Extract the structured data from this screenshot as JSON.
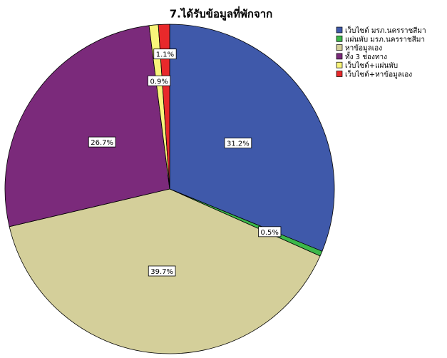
{
  "chart_data": {
    "type": "pie",
    "title": "7.ได้รับข้อมูลที่พักจาก",
    "categories": [
      "เว็บไซต์ มรภ.นครราชสีมา",
      "แผ่นพับ มรภ.นครราชสีมา",
      "หาข้อมูลเอง",
      "ทั้ง 3 ช่องทาง",
      "เว็บไซต์+แผ่นพับ",
      "เว็บไซต์+หาข้อมูลเอง"
    ],
    "values": [
      31.2,
      0.5,
      39.7,
      26.7,
      0.9,
      1.1
    ],
    "value_labels": [
      "31.2%",
      "0.5%",
      "39.7%",
      "26.7%",
      "0.9%",
      "1.1%"
    ],
    "colors": [
      "#3f59aa",
      "#3cb84a",
      "#d4cf9a",
      "#7b2a7b",
      "#f8f47a",
      "#e8292b"
    ],
    "legend": "top-right"
  }
}
